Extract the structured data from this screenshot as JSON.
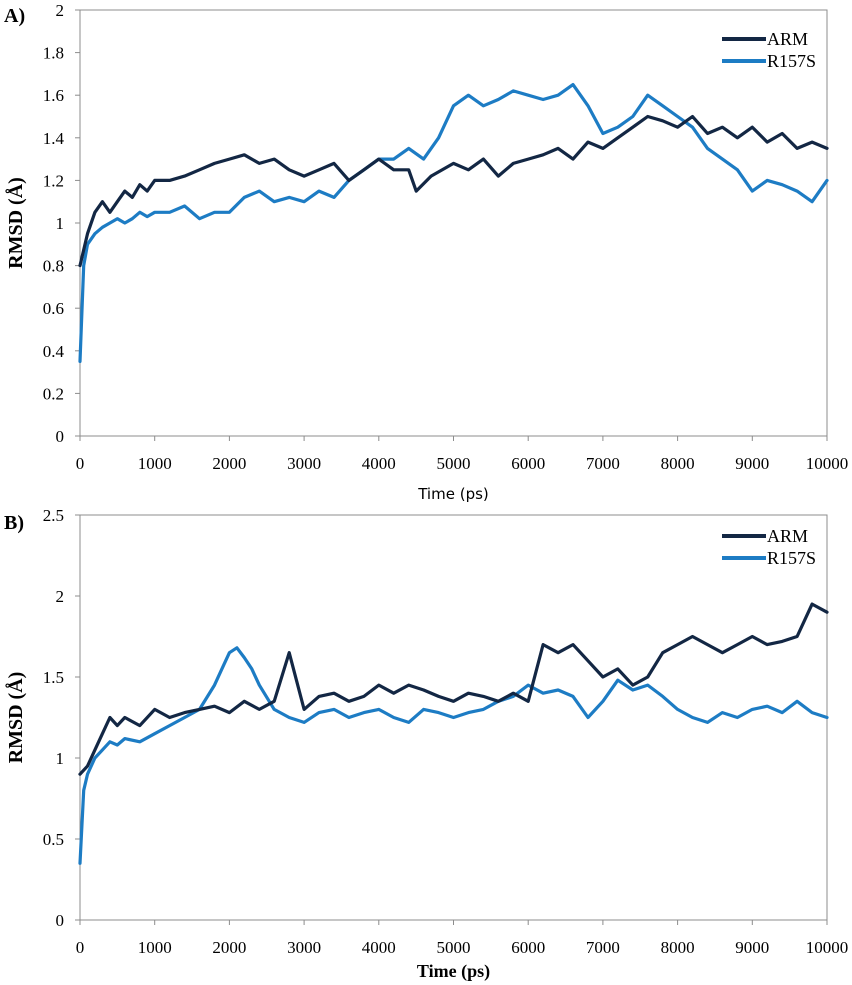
{
  "chart_data": [
    {
      "type": "line",
      "panel_label": "A)",
      "xlabel": "Time (ps)",
      "ylabel": "RMSD (Å)",
      "xlim": [
        0,
        10000
      ],
      "ylim": [
        0,
        2
      ],
      "xticks": [
        "0",
        "1000",
        "2000",
        "3000",
        "4000",
        "5000",
        "6000",
        "7000",
        "8000",
        "9000",
        "10000"
      ],
      "yticks": [
        "0",
        "0.2",
        "0.4",
        "0.6",
        "0.8",
        "1",
        "1.2",
        "1.4",
        "1.6",
        "1.8",
        "2"
      ],
      "legend_position": "top-right",
      "colors": {
        "ARM": "#132744",
        "R157S": "#1d7cc4"
      },
      "series": [
        {
          "name": "ARM",
          "x": [
            0,
            100,
            200,
            300,
            400,
            500,
            600,
            700,
            800,
            900,
            1000,
            1200,
            1400,
            1600,
            1800,
            2000,
            2200,
            2400,
            2600,
            2800,
            3000,
            3200,
            3400,
            3600,
            3800,
            4000,
            4200,
            4400,
            4500,
            4700,
            5000,
            5200,
            5400,
            5600,
            5800,
            6000,
            6200,
            6400,
            6600,
            6800,
            7000,
            7200,
            7400,
            7600,
            7800,
            8000,
            8200,
            8400,
            8600,
            8800,
            9000,
            9200,
            9400,
            9600,
            9800,
            10000
          ],
          "y": [
            0.8,
            0.95,
            1.05,
            1.1,
            1.05,
            1.1,
            1.15,
            1.12,
            1.18,
            1.15,
            1.2,
            1.2,
            1.22,
            1.25,
            1.28,
            1.3,
            1.32,
            1.28,
            1.3,
            1.25,
            1.22,
            1.25,
            1.28,
            1.2,
            1.25,
            1.3,
            1.25,
            1.25,
            1.15,
            1.22,
            1.28,
            1.25,
            1.3,
            1.22,
            1.28,
            1.3,
            1.32,
            1.35,
            1.3,
            1.38,
            1.35,
            1.4,
            1.45,
            1.5,
            1.48,
            1.45,
            1.5,
            1.42,
            1.45,
            1.4,
            1.45,
            1.38,
            1.42,
            1.35,
            1.38,
            1.35
          ]
        },
        {
          "name": "R157S",
          "x": [
            0,
            50,
            100,
            200,
            300,
            400,
            500,
            600,
            700,
            800,
            900,
            1000,
            1200,
            1400,
            1600,
            1800,
            2000,
            2200,
            2400,
            2600,
            2800,
            3000,
            3200,
            3400,
            3600,
            3800,
            4000,
            4200,
            4400,
            4600,
            4800,
            5000,
            5200,
            5400,
            5600,
            5800,
            6000,
            6200,
            6400,
            6600,
            6800,
            7000,
            7200,
            7400,
            7600,
            7800,
            8000,
            8200,
            8400,
            8600,
            8800,
            9000,
            9200,
            9400,
            9600,
            9800,
            10000
          ],
          "y": [
            0.35,
            0.8,
            0.9,
            0.95,
            0.98,
            1.0,
            1.02,
            1.0,
            1.02,
            1.05,
            1.03,
            1.05,
            1.05,
            1.08,
            1.02,
            1.05,
            1.05,
            1.12,
            1.15,
            1.1,
            1.12,
            1.1,
            1.15,
            1.12,
            1.2,
            1.25,
            1.3,
            1.3,
            1.35,
            1.3,
            1.4,
            1.55,
            1.6,
            1.55,
            1.58,
            1.62,
            1.6,
            1.58,
            1.6,
            1.65,
            1.55,
            1.42,
            1.45,
            1.5,
            1.6,
            1.55,
            1.5,
            1.45,
            1.35,
            1.3,
            1.25,
            1.15,
            1.2,
            1.18,
            1.15,
            1.1,
            1.2
          ]
        }
      ]
    },
    {
      "type": "line",
      "panel_label": "B)",
      "xlabel": "Time (ps)",
      "ylabel": "RMSD (Å)",
      "xlim": [
        0,
        10000
      ],
      "ylim": [
        0,
        2.5
      ],
      "xticks": [
        "0",
        "1000",
        "2000",
        "3000",
        "4000",
        "5000",
        "6000",
        "7000",
        "8000",
        "9000",
        "10000"
      ],
      "yticks": [
        "0",
        "0.5",
        "1",
        "1.5",
        "2",
        "2.5"
      ],
      "legend_position": "top-right",
      "colors": {
        "ARM": "#132744",
        "R157S": "#1d7cc4"
      },
      "series": [
        {
          "name": "ARM",
          "x": [
            0,
            100,
            200,
            300,
            400,
            500,
            600,
            800,
            1000,
            1200,
            1400,
            1600,
            1800,
            2000,
            2200,
            2400,
            2600,
            2800,
            3000,
            3200,
            3400,
            3600,
            3800,
            4000,
            4200,
            4400,
            4600,
            4800,
            5000,
            5200,
            5400,
            5600,
            5800,
            6000,
            6200,
            6400,
            6600,
            6800,
            7000,
            7200,
            7400,
            7600,
            7800,
            8000,
            8200,
            8400,
            8600,
            8800,
            9000,
            9200,
            9400,
            9600,
            9800,
            10000
          ],
          "y": [
            0.9,
            0.95,
            1.05,
            1.15,
            1.25,
            1.2,
            1.25,
            1.2,
            1.3,
            1.25,
            1.28,
            1.3,
            1.32,
            1.28,
            1.35,
            1.3,
            1.35,
            1.65,
            1.3,
            1.38,
            1.4,
            1.35,
            1.38,
            1.45,
            1.4,
            1.45,
            1.42,
            1.38,
            1.35,
            1.4,
            1.38,
            1.35,
            1.4,
            1.35,
            1.7,
            1.65,
            1.7,
            1.6,
            1.5,
            1.55,
            1.45,
            1.5,
            1.65,
            1.7,
            1.75,
            1.7,
            1.65,
            1.7,
            1.75,
            1.7,
            1.72,
            1.75,
            1.95,
            1.9
          ]
        },
        {
          "name": "R157S",
          "x": [
            0,
            50,
            100,
            200,
            300,
            400,
            500,
            600,
            800,
            1000,
            1200,
            1400,
            1600,
            1800,
            1900,
            2000,
            2100,
            2200,
            2300,
            2400,
            2600,
            2800,
            3000,
            3200,
            3400,
            3600,
            3800,
            4000,
            4200,
            4400,
            4600,
            4800,
            5000,
            5200,
            5400,
            5600,
            5800,
            6000,
            6200,
            6400,
            6600,
            6800,
            7000,
            7200,
            7400,
            7600,
            7800,
            8000,
            8200,
            8400,
            8600,
            8800,
            9000,
            9200,
            9400,
            9600,
            9800,
            10000
          ],
          "y": [
            0.35,
            0.8,
            0.9,
            1.0,
            1.05,
            1.1,
            1.08,
            1.12,
            1.1,
            1.15,
            1.2,
            1.25,
            1.3,
            1.45,
            1.55,
            1.65,
            1.68,
            1.62,
            1.55,
            1.45,
            1.3,
            1.25,
            1.22,
            1.28,
            1.3,
            1.25,
            1.28,
            1.3,
            1.25,
            1.22,
            1.3,
            1.28,
            1.25,
            1.28,
            1.3,
            1.35,
            1.38,
            1.45,
            1.4,
            1.42,
            1.38,
            1.25,
            1.35,
            1.48,
            1.42,
            1.45,
            1.38,
            1.3,
            1.25,
            1.22,
            1.28,
            1.25,
            1.3,
            1.32,
            1.28,
            1.35,
            1.28,
            1.25
          ]
        }
      ]
    }
  ]
}
